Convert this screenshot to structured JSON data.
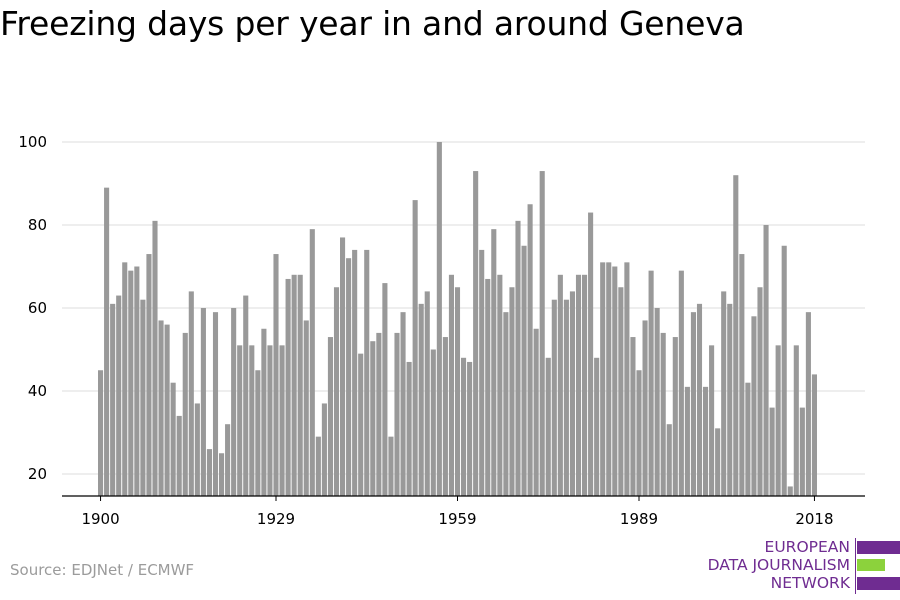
{
  "title": "Freezing days per year in and around Geneva",
  "source": "Source: EDJNet / ECMWF",
  "logo": {
    "lines": [
      "EUROPEAN",
      "DATA JOURNALISM",
      "NETWORK"
    ],
    "colors": {
      "purple": "#6f2c91",
      "green": "#8cd23c"
    }
  },
  "colors": {
    "bar": "#999999",
    "grid": "#dddddd",
    "axis": "#000000",
    "tick_text": "#000000"
  },
  "chart_data": {
    "type": "bar",
    "title": "Freezing days per year in and around Geneva",
    "xlabel": "",
    "ylabel": "",
    "x_start": 1900,
    "x_end": 2018,
    "x_ticks": [
      1900,
      1929,
      1959,
      1989,
      2018
    ],
    "y_ticks": [
      20,
      40,
      60,
      80,
      100
    ],
    "ylim": [
      15,
      100
    ],
    "grid": true,
    "values": [
      45,
      89,
      61,
      63,
      71,
      69,
      70,
      62,
      73,
      81,
      57,
      56,
      42,
      34,
      54,
      64,
      37,
      60,
      26,
      59,
      25,
      32,
      60,
      51,
      63,
      51,
      45,
      55,
      51,
      73,
      51,
      67,
      68,
      68,
      57,
      79,
      29,
      37,
      53,
      65,
      77,
      72,
      74,
      49,
      74,
      52,
      54,
      66,
      29,
      54,
      59,
      47,
      86,
      61,
      64,
      50,
      100,
      53,
      68,
      65,
      48,
      47,
      93,
      74,
      67,
      79,
      68,
      59,
      65,
      81,
      75,
      85,
      55,
      93,
      48,
      62,
      68,
      62,
      64,
      68,
      68,
      83,
      48,
      71,
      71,
      70,
      65,
      71,
      53,
      45,
      57,
      69,
      60,
      54,
      32,
      53,
      69,
      41,
      59,
      61,
      41,
      51,
      31,
      64,
      61,
      92,
      73,
      42,
      58,
      65,
      80,
      36,
      51,
      75,
      17,
      51,
      36,
      59,
      44
    ]
  }
}
